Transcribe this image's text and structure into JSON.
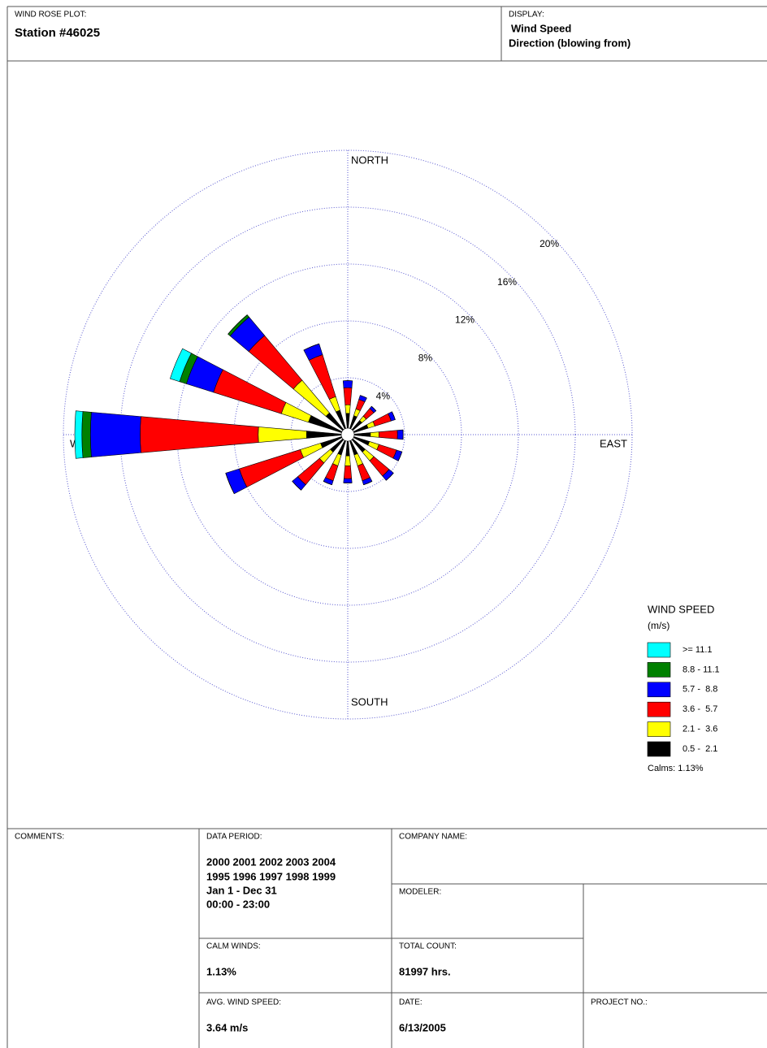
{
  "header": {
    "plot_label": "WIND ROSE PLOT:",
    "station": "Station #46025",
    "display_label": "DISPLAY:",
    "display_lines": [
      "Wind Speed",
      "Direction (blowing from)"
    ]
  },
  "chart_data": {
    "type": "windrose",
    "x": [
      0,
      22.5,
      45,
      67.5,
      90,
      112.5,
      135,
      157.5,
      180,
      202.5,
      225,
      247.5,
      270,
      292.5,
      315,
      337.5
    ],
    "direction_labels": [
      "NORTH",
      "EAST",
      "SOUTH",
      "WEST"
    ],
    "rlim": [
      0,
      20
    ],
    "rticks": [
      {
        "value": 4,
        "label": "4%"
      },
      {
        "value": 8,
        "label": "8%"
      },
      {
        "value": 12,
        "label": "12%"
      },
      {
        "value": 16,
        "label": "16%"
      },
      {
        "value": 20,
        "label": "20%"
      }
    ],
    "grid": true,
    "legend_title": [
      "WIND SPEED",
      "(m/s)"
    ],
    "calms_label": "Calms: 1.13%",
    "series": [
      {
        "name": "0.5 -  2.1",
        "color": "#000000",
        "values": [
          1.5,
          1.4,
          1.3,
          1.5,
          1.6,
          1.6,
          1.6,
          1.5,
          1.5,
          1.5,
          1.6,
          2.0,
          2.9,
          2.9,
          2.0,
          1.8
        ]
      },
      {
        "name": "2.1 -  3.6",
        "color": "#ffff00",
        "values": [
          0.6,
          0.5,
          0.4,
          0.5,
          0.6,
          0.7,
          0.8,
          0.8,
          0.7,
          0.8,
          1.0,
          1.5,
          3.4,
          2.0,
          3.0,
          1.0
        ]
      },
      {
        "name": "3.6 -  5.7",
        "color": "#ff0000",
        "values": [
          1.2,
          0.7,
          0.7,
          1.2,
          1.3,
          1.3,
          1.4,
          1.1,
          0.9,
          1.1,
          2.0,
          4.5,
          8.3,
          5.0,
          4.1,
          3.1
        ]
      },
      {
        "name": "5.7 -  8.8",
        "color": "#0000ff",
        "values": [
          0.5,
          0.3,
          0.2,
          0.3,
          0.4,
          0.4,
          0.4,
          0.3,
          0.3,
          0.3,
          0.5,
          1.0,
          3.5,
          2.0,
          1.7,
          0.8
        ]
      },
      {
        "name": "8.8 - 11.1",
        "color": "#008000",
        "values": [
          0,
          0,
          0,
          0,
          0,
          0,
          0,
          0,
          0,
          0,
          0,
          0,
          0.6,
          0.5,
          0.2,
          0
        ]
      },
      {
        "name": ">= 11.1",
        "color": "#00ffff",
        "values": [
          0,
          0,
          0,
          0,
          0,
          0,
          0,
          0,
          0,
          0,
          0,
          0,
          0.5,
          0.7,
          0,
          0
        ]
      }
    ]
  },
  "footer": {
    "comments_label": "COMMENTS:",
    "data_period_label": "DATA PERIOD:",
    "data_period_lines": [
      "2000 2001 2002 2003 2004",
      "1995 1996 1997 1998 1999",
      "Jan 1 - Dec 31",
      "00:00  -  23:00"
    ],
    "company_label": "COMPANY NAME:",
    "modeler_label": "MODELER:",
    "calm_label": "CALM WINDS:",
    "calm_value": "1.13%",
    "total_label": "TOTAL COUNT:",
    "total_value": "81997 hrs.",
    "avg_label": "AVG. WIND SPEED:",
    "avg_value": "3.64 m/s",
    "date_label": "DATE:",
    "date_value": "6/13/2005",
    "project_label": "PROJECT NO.:"
  }
}
